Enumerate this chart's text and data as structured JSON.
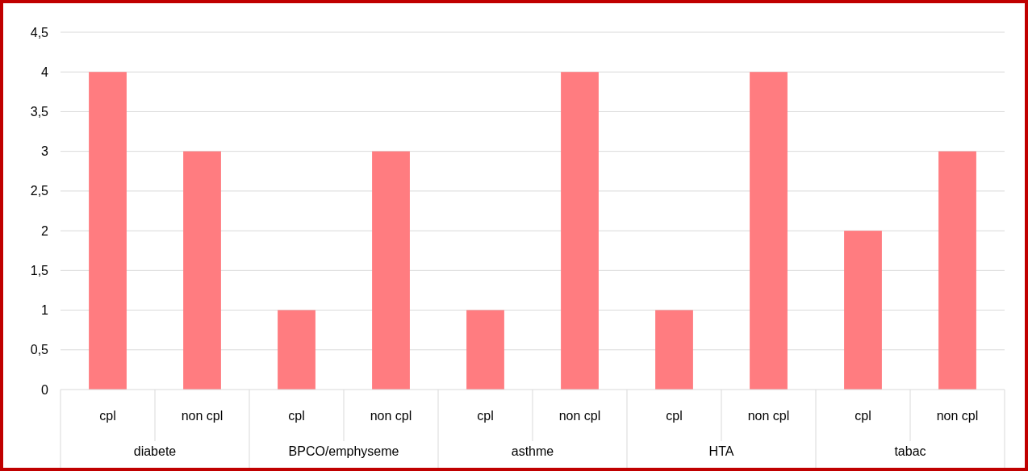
{
  "chart_data": {
    "type": "bar",
    "categories": [
      "cpl",
      "non cpl",
      "cpl",
      "non cpl",
      "cpl",
      "non cpl",
      "cpl",
      "non cpl",
      "cpl",
      "non cpl"
    ],
    "values": [
      4,
      3,
      1,
      3,
      1,
      4,
      1,
      4,
      2,
      3
    ],
    "color": "#ff7c80",
    "ylim": [
      0,
      4.5
    ],
    "yticks": [
      0,
      {
        "value": 0.5,
        "label": "0,5"
      },
      1,
      {
        "value": 1.5,
        "label": "1,5"
      },
      2,
      {
        "value": 2.5,
        "label": "2,5"
      },
      3,
      {
        "value": 3.5,
        "label": "3,5"
      },
      4,
      {
        "value": 4.5,
        "label": "4,5"
      }
    ],
    "grid": "y",
    "annotations": [
      "diabete",
      "BPCO/emphyseme",
      "asthme",
      "HTA",
      "tabac"
    ]
  }
}
